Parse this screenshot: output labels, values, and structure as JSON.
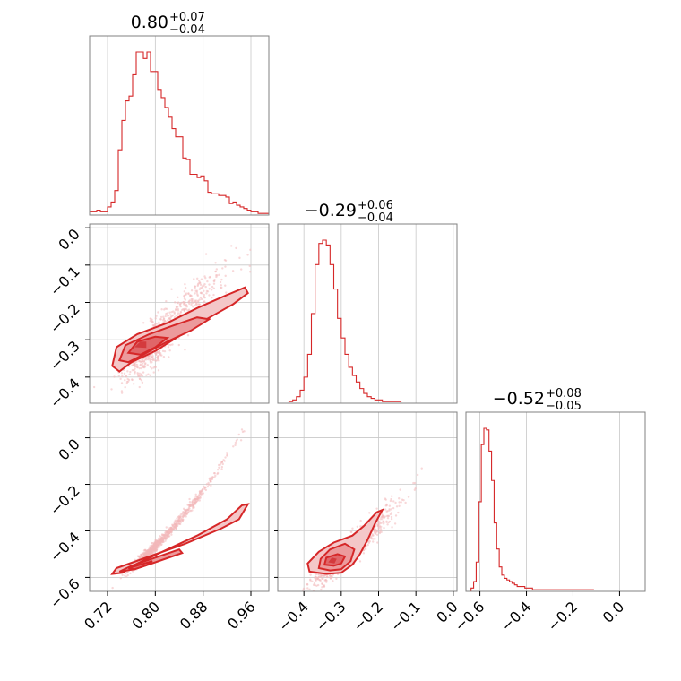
{
  "chart_data": {
    "type": "corner",
    "color": "#d62728",
    "grid": true,
    "parameters": [
      {
        "title_value": "0.80",
        "title_plus": "+0.07",
        "title_minus": "−0.04",
        "median": 0.8,
        "err_plus": 0.07,
        "err_minus": 0.04,
        "lim": [
          0.69,
          0.99
        ],
        "ticks": [
          0.72,
          0.8,
          0.88,
          0.96
        ],
        "tick_labels": [
          "0.72",
          "0.80",
          "0.88",
          "0.96"
        ],
        "hist": {
          "edges_start": 0.69,
          "bin_width": 0.006,
          "counts": [
            2,
            2,
            3,
            2,
            2,
            5,
            8,
            15,
            40,
            58,
            70,
            73,
            86,
            100,
            100,
            96,
            100,
            88,
            88,
            77,
            72,
            66,
            60,
            53,
            48,
            48,
            35,
            34,
            25,
            25,
            23,
            24,
            21,
            14,
            13,
            13,
            12,
            12,
            11,
            7,
            8,
            6,
            5,
            4,
            3,
            2,
            2,
            1,
            1,
            1
          ]
        }
      },
      {
        "title_value": "−0.29",
        "title_plus": "+0.06",
        "title_minus": "−0.04",
        "median": -0.29,
        "err_plus": 0.06,
        "err_minus": 0.04,
        "lim": [
          -0.47,
          0.01
        ],
        "ticks": [
          -0.4,
          -0.3,
          -0.2,
          -0.1,
          0.0
        ],
        "tick_labels": [
          "−0.4",
          "−0.3",
          "−0.2",
          "−0.1",
          "0.0"
        ],
        "hist": {
          "edges_start": -0.47,
          "bin_width": 0.01,
          "counts": [
            0,
            0,
            0,
            1,
            2,
            4,
            8,
            16,
            30,
            55,
            85,
            98,
            100,
            97,
            85,
            70,
            52,
            40,
            30,
            22,
            17,
            13,
            9,
            6,
            4,
            3,
            2,
            2,
            1,
            1,
            1,
            1,
            1,
            0,
            0,
            0,
            0,
            0,
            0,
            0,
            0,
            0,
            0,
            0,
            0,
            0,
            0,
            0
          ]
        }
      },
      {
        "title_value": "−0.52",
        "title_plus": "+0.08",
        "title_minus": "−0.05",
        "median": -0.52,
        "err_plus": 0.08,
        "err_minus": 0.05,
        "lim": [
          -0.66,
          0.11
        ],
        "ticks": [
          -0.6,
          -0.4,
          -0.2,
          0.0
        ],
        "tick_labels": [
          "−0.6",
          "−0.4",
          "−0.2",
          "0.0"
        ],
        "hist": {
          "edges_start": -0.66,
          "bin_width": 0.011,
          "counts": [
            0,
            0,
            2,
            6,
            18,
            55,
            90,
            100,
            99,
            86,
            68,
            42,
            26,
            15,
            10,
            8,
            7,
            6,
            5,
            4,
            3,
            3,
            3,
            2,
            2,
            2,
            1,
            1,
            1,
            1,
            1,
            1,
            1,
            1,
            1,
            1,
            1,
            1,
            1,
            1,
            1,
            1,
            1,
            1,
            1,
            1,
            1,
            1,
            1,
            1
          ]
        }
      }
    ]
  }
}
